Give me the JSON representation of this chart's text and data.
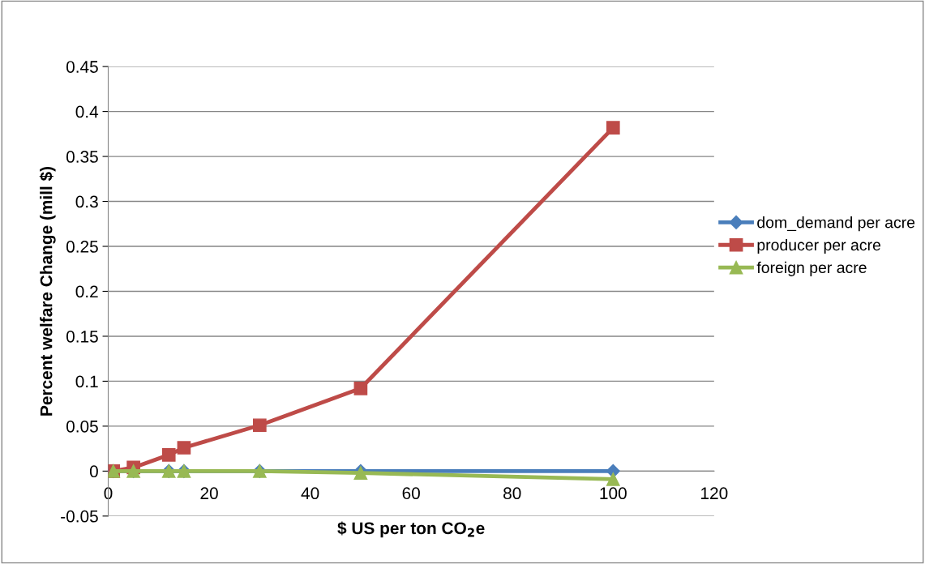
{
  "chart_data": {
    "type": "line",
    "xlabel": "$ US per ton CO$_{2}$e",
    "ylabel": "Percent welfare Change (mill $)",
    "xlim": [
      0,
      120
    ],
    "xticks": [
      0,
      20,
      40,
      60,
      80,
      100,
      120
    ],
    "ylim": [
      -0.05,
      0.45
    ],
    "yticks": [
      -0.05,
      0,
      0.05,
      0.1,
      0.15,
      0.2,
      0.25,
      0.3,
      0.35,
      0.4,
      0.45
    ],
    "grid": "y",
    "legend": "right",
    "line_style": "solid",
    "series": [
      {
        "name": "dom_demand per acre",
        "color": "#4a7ebb",
        "marker": "diamond",
        "x": [
          1,
          5,
          12,
          15,
          30,
          50,
          100
        ],
        "values": [
          0,
          0,
          0,
          0,
          0,
          0,
          0
        ]
      },
      {
        "name": "producer per acre",
        "color": "#be4b48",
        "marker": "square",
        "x": [
          1,
          5,
          12,
          15,
          30,
          50,
          100
        ],
        "values": [
          0,
          0.004,
          0.018,
          0.026,
          0.051,
          0.092,
          0.382
        ]
      },
      {
        "name": "foreign per acre",
        "color": "#98b954",
        "marker": "triangle",
        "x": [
          1,
          5,
          12,
          15,
          30,
          50,
          100
        ],
        "values": [
          0,
          0,
          0,
          0,
          0,
          -0.002,
          -0.009
        ]
      }
    ]
  }
}
